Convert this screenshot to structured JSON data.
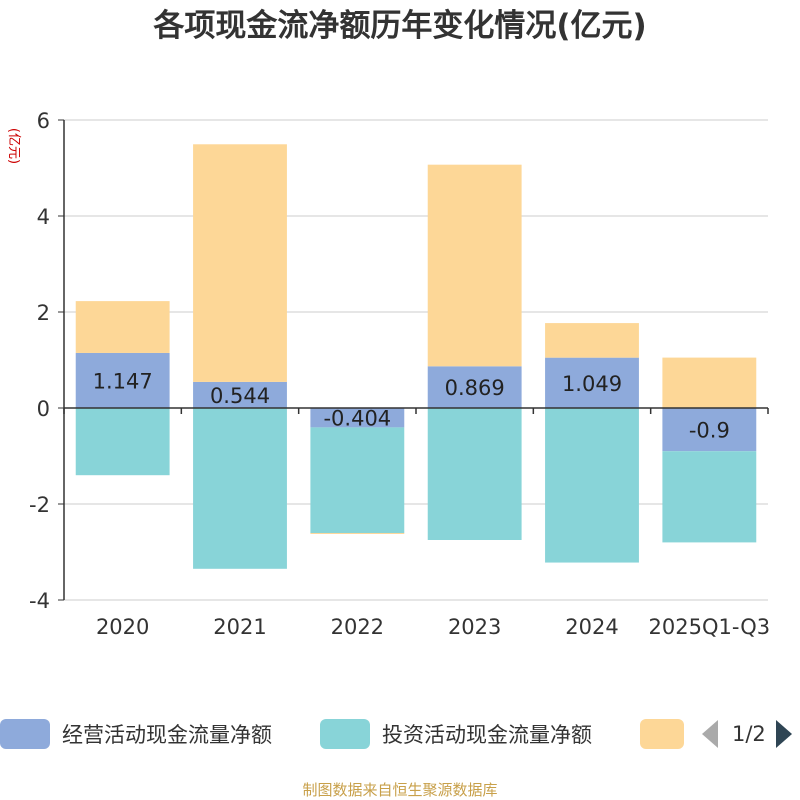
{
  "chart_data": {
    "type": "bar",
    "stacked": true,
    "title": "各项现金流净额历年变化情况(亿元)",
    "ylabel": "(亿元)",
    "categories": [
      "2020",
      "2021",
      "2022",
      "2023",
      "2024",
      "2025Q1-Q3"
    ],
    "ylim": [
      -4,
      6
    ],
    "yticks": [
      -4,
      -2,
      0,
      2,
      4,
      6
    ],
    "grid": true,
    "series": [
      {
        "name": "经营活动现金流量净额",
        "color": "#8eaadb",
        "values": [
          1.147,
          0.544,
          -0.404,
          0.869,
          1.049,
          -0.9
        ]
      },
      {
        "name": "投资活动现金流量净额",
        "color": "#88d4d8",
        "values": [
          -1.4,
          -3.35,
          -2.2,
          -2.75,
          -3.22,
          -1.9
        ]
      },
      {
        "name": "",
        "color": "#fdd797",
        "values": [
          1.08,
          4.95,
          -0.02,
          4.2,
          0.72,
          1.05
        ]
      }
    ],
    "data_labels": [
      "1.147",
      "0.544",
      "-0.404",
      "0.869",
      "1.049",
      "-0.9"
    ]
  },
  "legend": {
    "items": [
      {
        "label": "经营活动现金流量净额",
        "color": "#8eaadb"
      },
      {
        "label": "投资活动现金流量净额",
        "color": "#88d4d8"
      },
      {
        "label": "",
        "color": "#fdd797"
      }
    ],
    "page": "1/2"
  },
  "source": "制图数据来自恒生聚源数据库"
}
